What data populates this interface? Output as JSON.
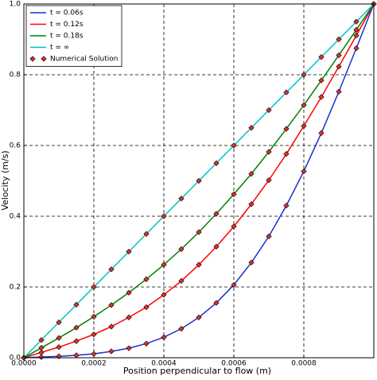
{
  "chart_data": {
    "type": "line",
    "xlabel": "Position perpendicular to flow (m)",
    "ylabel": "Velocity (m/s)",
    "xlim": [
      0,
      0.001
    ],
    "ylim": [
      0,
      1
    ],
    "xticks": [
      {
        "value": 0,
        "label": "0.0000"
      },
      {
        "value": 0.0002,
        "label": "0.0002"
      },
      {
        "value": 0.0004,
        "label": "0.0004"
      },
      {
        "value": 0.0006,
        "label": "0.0006"
      },
      {
        "value": 0.0008,
        "label": "0.0008"
      }
    ],
    "yticks": [
      {
        "value": 0,
        "label": "0.0"
      },
      0.2,
      0.4,
      0.6,
      0.8,
      {
        "value": 1,
        "label": "1.0"
      }
    ],
    "grid": true,
    "legend": "upper left",
    "x": [
      0,
      5e-05,
      0.0001,
      0.00015,
      0.0002,
      0.00025,
      0.0003,
      0.00035,
      0.0004,
      0.00045,
      0.0005,
      0.00055,
      0.0006,
      0.00065,
      0.0007,
      0.00075,
      0.0008,
      0.00085,
      0.0009,
      0.00095,
      0.001
    ],
    "series": [
      {
        "name": "t = 0.06s",
        "color": "#1a2fd0",
        "values": [
          0,
          0.002,
          0.004,
          0.007,
          0.011,
          0.018,
          0.027,
          0.04,
          0.058,
          0.082,
          0.114,
          0.155,
          0.206,
          0.269,
          0.343,
          0.43,
          0.527,
          0.635,
          0.752,
          0.875,
          1
        ]
      },
      {
        "name": "t = 0.12s",
        "color": "#ff0000",
        "values": [
          0,
          0.015,
          0.03,
          0.047,
          0.066,
          0.088,
          0.114,
          0.143,
          0.178,
          0.217,
          0.263,
          0.314,
          0.371,
          0.434,
          0.502,
          0.576,
          0.655,
          0.737,
          0.823,
          0.911,
          1
        ]
      },
      {
        "name": "t = 0.18s",
        "color": "#008000",
        "values": [
          0,
          0.028,
          0.056,
          0.085,
          0.116,
          0.149,
          0.184,
          0.222,
          0.263,
          0.307,
          0.355,
          0.407,
          0.462,
          0.52,
          0.582,
          0.647,
          0.714,
          0.784,
          0.855,
          0.927,
          1
        ]
      },
      {
        "name": "t = ∞",
        "color": "#00bfbf",
        "values": [
          0,
          0.05,
          0.1,
          0.15,
          0.2,
          0.25,
          0.3,
          0.35,
          0.4,
          0.45,
          0.5,
          0.55,
          0.6,
          0.65,
          0.7,
          0.75,
          0.8,
          0.85,
          0.9,
          0.95,
          1
        ]
      }
    ],
    "numerical": {
      "name": "Numerical Solution",
      "color": "#e0302a",
      "values": [
        [
          0,
          0.002,
          0.004,
          0.007,
          0.011,
          0.018,
          0.027,
          0.04,
          0.058,
          0.082,
          0.114,
          0.155,
          0.206,
          0.269,
          0.343,
          0.43,
          0.527,
          0.635,
          0.752,
          0.875,
          1
        ],
        [
          0,
          0.015,
          0.03,
          0.047,
          0.066,
          0.088,
          0.114,
          0.143,
          0.178,
          0.217,
          0.263,
          0.314,
          0.371,
          0.434,
          0.502,
          0.576,
          0.655,
          0.737,
          0.823,
          0.911,
          1
        ],
        [
          0,
          0.028,
          0.056,
          0.085,
          0.116,
          0.149,
          0.184,
          0.222,
          0.263,
          0.307,
          0.355,
          0.407,
          0.462,
          0.52,
          0.582,
          0.647,
          0.714,
          0.784,
          0.855,
          0.927,
          1
        ],
        [
          0,
          0.05,
          0.1,
          0.15,
          0.2,
          0.25,
          0.3,
          0.35,
          0.4,
          0.45,
          0.5,
          0.55,
          0.6,
          0.65,
          0.7,
          0.75,
          0.8,
          0.85,
          0.9,
          0.95,
          1
        ]
      ]
    }
  }
}
